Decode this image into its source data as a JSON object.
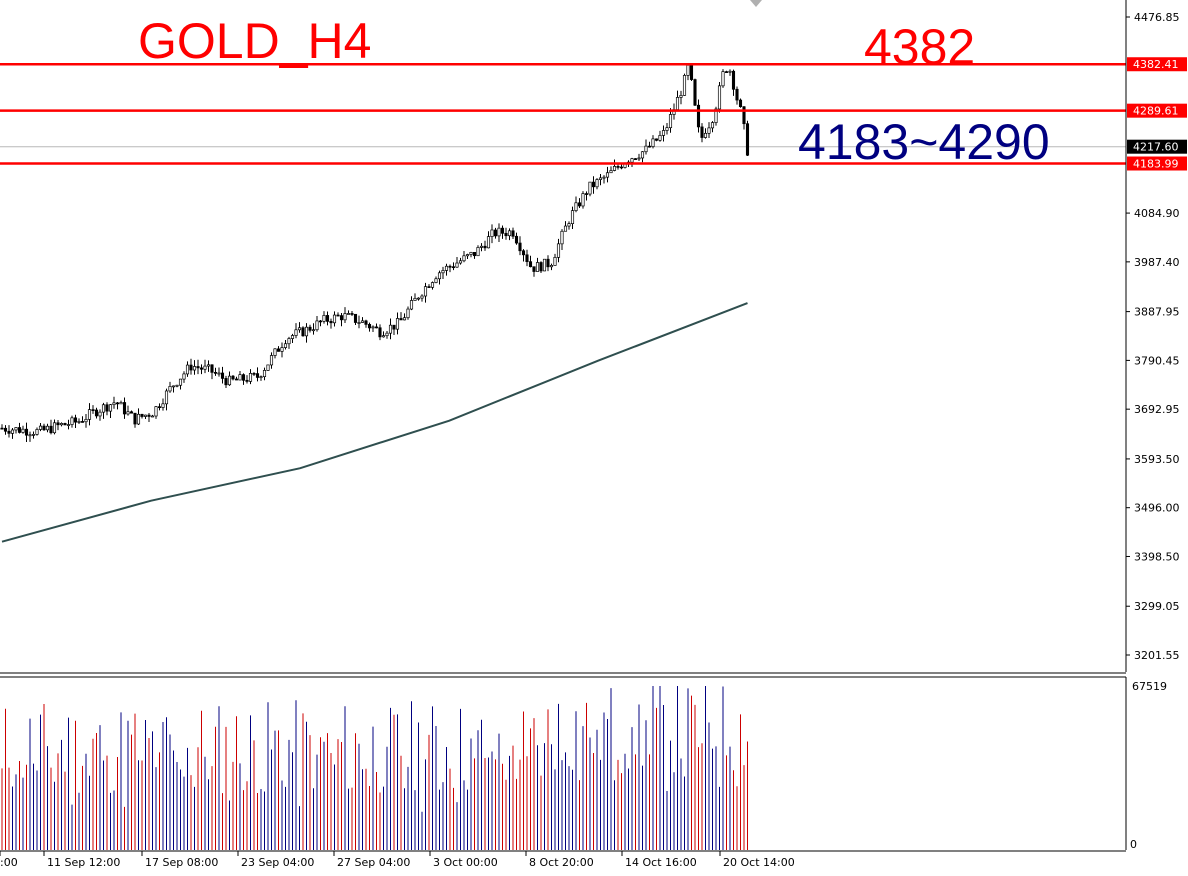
{
  "chart_data": [
    {
      "type": "candlestick",
      "title": "GOLD_H4",
      "price_axis": {
        "ticks": [
          "4476.85",
          "4382.41",
          "4289.61",
          "4217.60",
          "4183.99",
          "4084.90",
          "3987.40",
          "3887.95",
          "3790.45",
          "3692.95",
          "3593.50",
          "3496.00",
          "3398.50",
          "3299.05",
          "3201.55"
        ],
        "range": [
          3180,
          4500
        ]
      },
      "time_axis": {
        "ticks": [
          ":00",
          "11 Sep 12:00",
          "17 Sep 08:00",
          "23 Sep 04:00",
          "27 Sep 04:00",
          "3 Oct 00:00",
          "8 Oct 20:00",
          "14 Oct 16:00",
          "20 Oct 14:00"
        ],
        "bar_count": 214
      },
      "horizontal_levels": [
        {
          "value": 4382.41,
          "label": "4382.41",
          "color": "#ff0000"
        },
        {
          "value": 4289.61,
          "label": "4289.61",
          "color": "#ff0000"
        },
        {
          "value": 4183.99,
          "label": "4183.99",
          "color": "#ff0000"
        }
      ],
      "current_price": {
        "value": 4217.6,
        "label": "4217.60",
        "color": "#000000"
      },
      "annotations": [
        {
          "text": "GOLD_H4",
          "color": "#ff0000"
        },
        {
          "text": "4382",
          "color": "#ff0000"
        },
        {
          "text": "4183~4290",
          "color": "#000080"
        }
      ],
      "close_path": [
        [
          0,
          3655
        ],
        [
          10,
          3652
        ],
        [
          20,
          3648
        ],
        [
          30,
          3660
        ],
        [
          40,
          3668
        ],
        [
          50,
          3690
        ],
        [
          60,
          3708
        ],
        [
          70,
          3672
        ],
        [
          80,
          3688
        ],
        [
          90,
          3740
        ],
        [
          100,
          3780
        ],
        [
          110,
          3770
        ],
        [
          120,
          3748
        ],
        [
          135,
          3758
        ],
        [
          140,
          3782
        ],
        [
          150,
          3835
        ],
        [
          160,
          3850
        ],
        [
          170,
          3870
        ],
        [
          180,
          3880
        ],
        [
          190,
          3868
        ],
        [
          200,
          3848
        ],
        [
          210,
          3865
        ],
        [
          220,
          3920
        ],
        [
          230,
          3965
        ],
        [
          240,
          3985
        ],
        [
          250,
          4005
        ],
        [
          260,
          4045
        ],
        [
          270,
          4048
        ],
        [
          280,
          3975
        ],
        [
          290,
          3985
        ],
        [
          300,
          4075
        ],
        [
          310,
          4135
        ],
        [
          320,
          4160
        ],
        [
          330,
          4192
        ],
        [
          340,
          4210
        ],
        [
          350,
          4245
        ],
        [
          360,
          4340
        ],
        [
          363,
          4380
        ],
        [
          366,
          4300
        ],
        [
          369,
          4228
        ],
        [
          372,
          4255
        ],
        [
          375,
          4270
        ],
        [
          378,
          4310
        ],
        [
          382,
          4378
        ],
        [
          385,
          4370
        ],
        [
          388,
          4320
        ],
        [
          391,
          4280
        ],
        [
          394,
          4210
        ]
      ],
      "moving_average": {
        "color": "#2f4f4f",
        "points": [
          [
            0,
            3428
          ],
          [
            100,
            3510
          ],
          [
            200,
            3575
          ],
          [
            300,
            3670
          ],
          [
            400,
            3790
          ],
          [
            500,
            3905
          ]
        ],
        "x_scale": "bar_index_fraction_of_500"
      },
      "price_decimals": 2
    },
    {
      "type": "bar",
      "title": "",
      "value_axis": {
        "ticks": [
          "67519",
          "0"
        ],
        "range": [
          0,
          67519
        ]
      },
      "up_color": "#000080",
      "down_color": "#cc0000",
      "peak_value": 67519
    }
  ]
}
